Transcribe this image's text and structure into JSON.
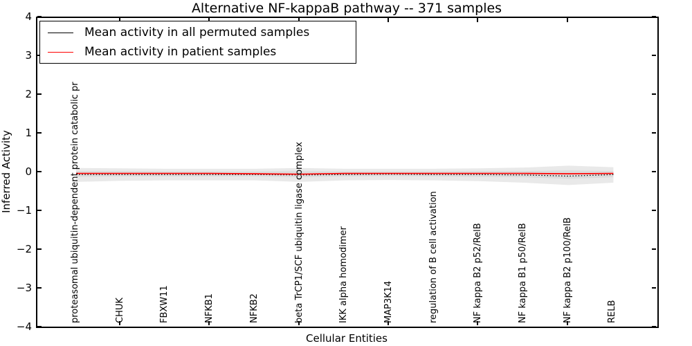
{
  "title": "Alternative NF-kappaB pathway -- 371 samples",
  "figure": {
    "background": "#ffffff",
    "spine_color": "#000000",
    "text_color": "#000000"
  },
  "legend": {
    "position": "upper left",
    "items": [
      {
        "label": "Mean activity in all permuted samples",
        "color": "#000000"
      },
      {
        "label": "Mean activity in patient samples",
        "color": "#ff0000"
      }
    ]
  },
  "chart_data": {
    "type": "line",
    "title": "Alternative NF-kappaB pathway -- 371 samples",
    "xlabel": "Cellular Entities",
    "ylabel": "Inferred Activity",
    "ylim": [
      -4,
      4
    ],
    "ytick_values": [
      4,
      3,
      2,
      1,
      0,
      -1,
      -2,
      -3,
      -4
    ],
    "ytick_labels": [
      "4",
      "3",
      "2",
      "1",
      "0",
      "−1",
      "−2",
      "−3",
      "−4"
    ],
    "xtick_mark_indices": [
      1,
      3,
      5,
      7,
      9,
      11
    ],
    "grid": false,
    "legend_position": "upper left",
    "categories": [
      "proteasomal ubiquitin-dependent protein catabolic pr",
      "CHUK",
      "FBXW11",
      "NFKB1",
      "NFKB2",
      "beta TrCP1/SCF ubiquitin ligase complex",
      "IKK alpha homodimer",
      "MAP3K14",
      "regulation of B cell activation",
      "NF kappa B2 p52/RelB",
      "NF kappa B1 p50/RelB",
      "NF kappa B2 p100/RelB",
      "RELB"
    ],
    "series": [
      {
        "name": "Mean activity in all permuted samples",
        "color": "#000000",
        "line_style": "dotted",
        "values": [
          -0.04,
          -0.04,
          -0.04,
          -0.04,
          -0.04,
          -0.05,
          -0.04,
          -0.03,
          -0.04,
          -0.04,
          -0.05,
          -0.08,
          -0.04
        ]
      },
      {
        "name": "Mean activity in patient samples",
        "color": "#ff0000",
        "line_style": "solid",
        "values": [
          -0.01,
          -0.01,
          -0.01,
          -0.01,
          -0.02,
          -0.03,
          -0.01,
          -0.01,
          -0.01,
          -0.01,
          -0.01,
          -0.02,
          -0.01
        ]
      }
    ],
    "bands": [
      {
        "name": "permuted activity spread (outer)",
        "color": "#e9e9e9",
        "upper": [
          0.13,
          0.12,
          0.11,
          0.11,
          0.11,
          0.13,
          0.11,
          0.11,
          0.11,
          0.12,
          0.14,
          0.19,
          0.15
        ],
        "lower": [
          -0.23,
          -0.2,
          -0.19,
          -0.19,
          -0.19,
          -0.23,
          -0.19,
          -0.18,
          -0.19,
          -0.21,
          -0.25,
          -0.31,
          -0.25
        ]
      },
      {
        "name": "permuted activity spread (inner)",
        "color": "#dcdcdc",
        "upper": [
          0.05,
          0.05,
          0.04,
          0.04,
          0.04,
          0.05,
          0.04,
          0.04,
          0.04,
          0.05,
          0.05,
          0.07,
          0.05
        ],
        "lower": [
          -0.1,
          -0.09,
          -0.09,
          -0.09,
          -0.09,
          -0.11,
          -0.09,
          -0.08,
          -0.09,
          -0.1,
          -0.11,
          -0.15,
          -0.11
        ]
      }
    ]
  }
}
